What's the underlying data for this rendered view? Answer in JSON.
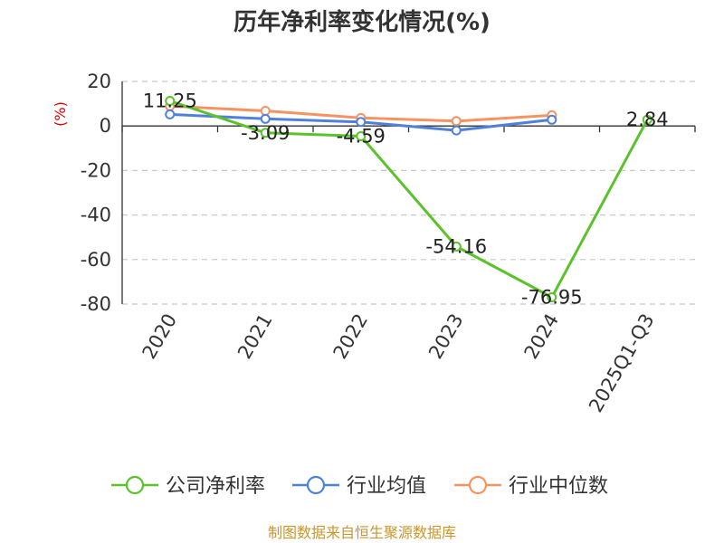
{
  "chart_data": {
    "type": "line",
    "title": "历年净利率变化情况(%)",
    "ylabel": "(%)",
    "xlabel": "",
    "categories": [
      "2020",
      "2021",
      "2022",
      "2023",
      "2024",
      "2025Q1-Q3"
    ],
    "yticks": [
      20,
      0,
      -20,
      -40,
      -60,
      -80
    ],
    "ylim": [
      -80,
      20
    ],
    "grid": true,
    "legend_position": "bottom",
    "series": [
      {
        "name": "公司净利率",
        "color": "#5cc22b",
        "values": [
          11.25,
          -3.09,
          -4.59,
          -54.16,
          -76.95,
          2.84
        ],
        "labels": [
          "11.25",
          "-3.09",
          "-4.59",
          "-54.16",
          "-76.95",
          "2.84"
        ]
      },
      {
        "name": "行业均值",
        "color": "#4f81db",
        "values": [
          5.2,
          3.2,
          1.8,
          -2.0,
          2.8,
          null
        ]
      },
      {
        "name": "行业中位数",
        "color": "#f59462",
        "values": [
          8.9,
          6.8,
          3.6,
          2.2,
          4.8,
          null
        ]
      }
    ],
    "source": "制图数据来自恒生聚源数据库"
  }
}
